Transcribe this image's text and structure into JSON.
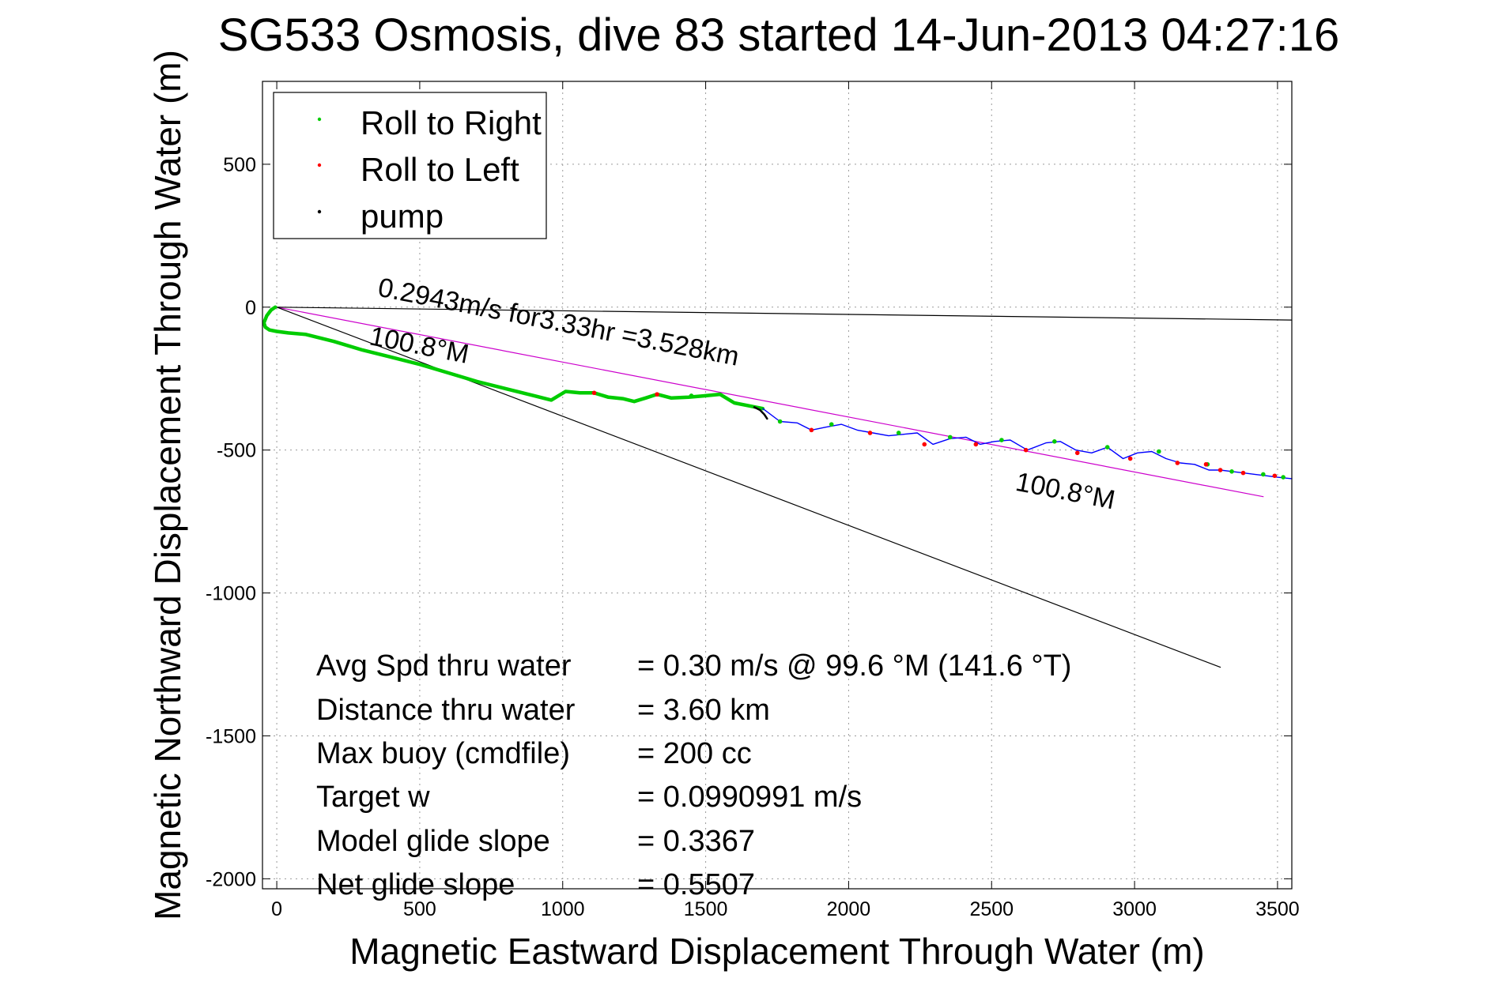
{
  "chart_data": {
    "type": "line",
    "title": "SG533 Osmosis, dive 83 started 14-Jun-2013 04:27:16",
    "xlabel": "Magnetic Eastward Displacement Through Water (m)",
    "ylabel": "Magnetic Northward Displacement Through Water (m)",
    "xlim": [
      -50,
      3550
    ],
    "ylim": [
      -2035,
      790
    ],
    "grid": true,
    "x_ticks": [
      0,
      500,
      1000,
      1500,
      2000,
      2500,
      3000,
      3500
    ],
    "y_ticks": [
      500,
      0,
      -500,
      -1000,
      -1500,
      -2000
    ],
    "legend": {
      "placement": "top-left",
      "entries": [
        {
          "label": "Roll to Right",
          "color": "#00cc00"
        },
        {
          "label": "Roll to Left",
          "color": "#ff0000"
        },
        {
          "label": "pump",
          "color": "#000000"
        }
      ]
    },
    "series": [
      {
        "name": "",
        "role": "track-green",
        "color": "#00cc00",
        "x": [
          -5,
          -20,
          -35,
          -45,
          -40,
          -25,
          0,
          40,
          100,
          200,
          300,
          400,
          500,
          600,
          700,
          800,
          900,
          960,
          1010,
          1060,
          1110,
          1160,
          1210,
          1250,
          1290,
          1330,
          1380,
          1440,
          1500,
          1550,
          1600,
          1650,
          1700
        ],
        "y": [
          0,
          -10,
          -30,
          -55,
          -70,
          -80,
          -85,
          -90,
          -95,
          -120,
          -150,
          -175,
          -200,
          -230,
          -260,
          -285,
          -310,
          -325,
          -295,
          -300,
          -300,
          -315,
          -320,
          -330,
          -318,
          -305,
          -318,
          -315,
          -310,
          -305,
          -335,
          -345,
          -355
        ]
      },
      {
        "name": "",
        "role": "track-blue",
        "color": "#0000ff",
        "x": [
          1700,
          1760,
          1820,
          1870,
          1920,
          1975,
          2030,
          2085,
          2140,
          2190,
          2240,
          2295,
          2355,
          2410,
          2460,
          2510,
          2565,
          2625,
          2690,
          2740,
          2795,
          2850,
          2905,
          2960,
          3010,
          3060,
          3110,
          3160,
          3210,
          3260,
          3300,
          3340,
          3380,
          3420,
          3460,
          3500,
          3550
        ],
        "y": [
          -355,
          -400,
          -405,
          -430,
          -420,
          -410,
          -430,
          -440,
          -450,
          -445,
          -440,
          -480,
          -460,
          -455,
          -480,
          -470,
          -465,
          -500,
          -475,
          -470,
          -500,
          -510,
          -490,
          -530,
          -510,
          -505,
          -530,
          -545,
          -550,
          -570,
          -570,
          -575,
          -580,
          -585,
          -590,
          -595,
          -600
        ]
      },
      {
        "name": "",
        "role": "pump-segment",
        "color": "#000000",
        "x": [
          1670,
          1690,
          1705,
          1715
        ],
        "y": [
          -350,
          -360,
          -375,
          -390
        ]
      },
      {
        "name": "",
        "role": "reference-line-magenta",
        "color": "#cc00cc",
        "x": [
          0,
          3450
        ],
        "y": [
          0,
          -663
        ]
      },
      {
        "name": "",
        "role": "reference-line-black-steep",
        "color": "#000000",
        "x": [
          0,
          3300
        ],
        "y": [
          0,
          -1260
        ]
      },
      {
        "name": "",
        "role": "reference-line-black-flat",
        "color": "#000000",
        "x": [
          0,
          3550
        ],
        "y": [
          0,
          -45
        ]
      }
    ],
    "markers_right": {
      "color": "#00cc00",
      "x": [
        1450,
        1760,
        1940,
        2175,
        2355,
        2535,
        2720,
        2905,
        3085,
        3255,
        3340,
        3450,
        3520
      ],
      "y": [
        -310,
        -400,
        -410,
        -440,
        -455,
        -465,
        -470,
        -490,
        -505,
        -550,
        -575,
        -585,
        -595
      ]
    },
    "markers_left": {
      "color": "#ff0000",
      "x": [
        1110,
        1330,
        1870,
        2075,
        2265,
        2445,
        2620,
        2800,
        2985,
        3150,
        3250,
        3300,
        3380,
        3490
      ],
      "y": [
        -300,
        -305,
        -430,
        -440,
        -480,
        -480,
        -500,
        -510,
        -530,
        -545,
        -550,
        -570,
        -580,
        -590
      ]
    },
    "annotations": [
      {
        "text": "0.2943m/s for3.33hr =3.528km",
        "x": 350,
        "y": 40,
        "angle": 11
      },
      {
        "text": "100.8°M",
        "x": 320,
        "y": -130,
        "angle": 11
      },
      {
        "text": "100.8°M",
        "x": 2580,
        "y": -640,
        "angle": 11
      }
    ],
    "stats": [
      {
        "label": "Avg Spd thru water",
        "value": "=  0.30 m/s @  99.6 °M (141.6 °T)"
      },
      {
        "label": "Distance thru water",
        "value": "=  3.60 km"
      },
      {
        "label": "Max buoy (cmdfile)",
        "value": "= 200 cc"
      },
      {
        "label": "Target w",
        "value": "= 0.0990991 m/s"
      },
      {
        "label": "Model glide slope",
        "value": "= 0.3367"
      },
      {
        "label": "Net glide slope",
        "value": "= 0.5507"
      }
    ]
  }
}
